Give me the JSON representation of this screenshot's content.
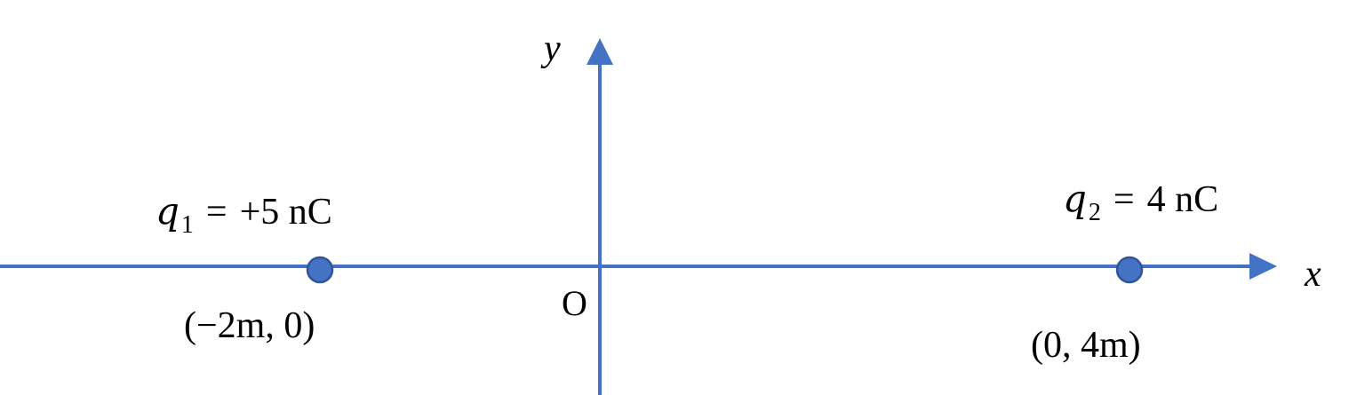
{
  "colors": {
    "axis": "#4472C4",
    "charge_fill": "#4472C4",
    "charge_stroke": "#2F5597",
    "text": "#000000",
    "background": "#FFFFFF"
  },
  "axes": {
    "x_label": "x",
    "y_label": "y",
    "origin_label": "O"
  },
  "charges": [
    {
      "symbol": "q",
      "subscript": "1",
      "equals": "=",
      "value": "+5 nC",
      "position_label": "(−2m, 0)"
    },
    {
      "symbol": "q",
      "subscript": "2",
      "equals": "=",
      "value": "4 nC",
      "position_label": "(0, 4m)"
    }
  ]
}
